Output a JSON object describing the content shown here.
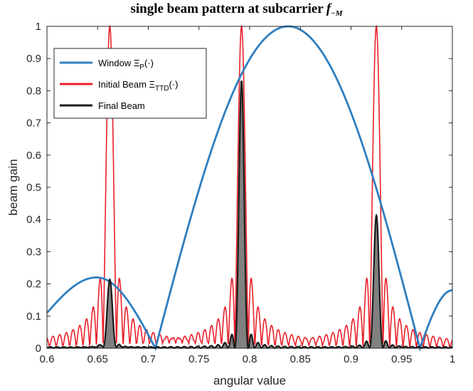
{
  "chart_data": {
    "type": "line",
    "title": "single beam pattern at subcarrier",
    "title_symbol": "f",
    "title_subscript": "−M",
    "xlabel": "angular value",
    "ylabel": "beam gain",
    "xlim": [
      0.6,
      1.0
    ],
    "ylim": [
      0,
      1
    ],
    "xticks": [
      0.6,
      0.65,
      0.7,
      0.75,
      0.8,
      0.85,
      0.9,
      0.95,
      1
    ],
    "xtick_labels": [
      "0.6",
      "0.65",
      "0.7",
      "0.75",
      "0.8",
      "0.85",
      "0.9",
      "0.95",
      "1"
    ],
    "yticks": [
      0,
      0.1,
      0.2,
      0.3,
      0.4,
      0.5,
      0.6,
      0.7,
      0.8,
      0.9,
      1
    ],
    "ytick_labels": [
      "0",
      "0.1",
      "0.2",
      "0.3",
      "0.4",
      "0.5",
      "0.6",
      "0.7",
      "0.8",
      "0.9",
      "1"
    ],
    "legend_position": "top-left",
    "series": [
      {
        "name": "Window",
        "legend_label": "Window Ξ",
        "legend_sub": "P",
        "legend_suffix": "(·)",
        "color": "#2e7ebf",
        "kind": "window",
        "main_lobe": {
          "center": 0.838,
          "peak": 1.0,
          "zero_left": 0.707,
          "zero_right": 0.968
        },
        "side_lobe": {
          "peak_x": 0.649,
          "peak_y": 0.22
        },
        "y_at_0.6": 0.11,
        "y_at_1.0": 0.18
      },
      {
        "name": "Initial Beam",
        "legend_label": "Initial Beam  Ξ",
        "legend_sub": "TTD",
        "legend_suffix": "(·)",
        "color": "#e8202a",
        "kind": "multibeam",
        "peaks": [
          0.662,
          0.792,
          0.925
        ],
        "peak_value": 1.0,
        "lobe_spacing": 0.0066
      },
      {
        "name": "Final Beam",
        "legend_label": "Final Beam",
        "legend_sub": "",
        "legend_suffix": "",
        "color": "#1a1a1a",
        "fill": "#808080",
        "kind": "product",
        "peaks": [
          {
            "x": 0.662,
            "y": 0.21
          },
          {
            "x": 0.792,
            "y": 0.83
          },
          {
            "x": 0.925,
            "y": 0.41
          }
        ]
      }
    ]
  }
}
